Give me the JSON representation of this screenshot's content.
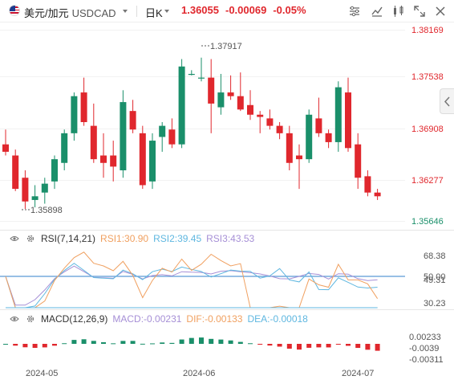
{
  "header": {
    "pair_name": "美元/加元",
    "symbol": "USDCAD",
    "period": "日K",
    "price": "1.36055",
    "change": "-0.00069",
    "change_pct": "-0.05%"
  },
  "toolbar": {
    "icons": [
      "settings-sliders-icon",
      "indicator-icon",
      "compare-icon",
      "fullscreen-icon",
      "close-icon"
    ]
  },
  "colors": {
    "up": "#1a8f6a",
    "down": "#e0272d",
    "rsi1": "#f0a060",
    "rsi2": "#5fb7e0",
    "rsi3": "#a68fd6",
    "macd_line": "#f0a060",
    "dif": "#f0a060",
    "dea": "#5fb7e0",
    "ref_line": "#5b9bd5"
  },
  "price_axis": {
    "labels": [
      "1.38169",
      "1.37538",
      "1.36908",
      "1.36277",
      "1.35646"
    ],
    "min": 1.3562,
    "max": 1.3835
  },
  "annotations": {
    "high": "1.37917",
    "low": "1.35898"
  },
  "time_axis": {
    "labels": [
      "2024-05",
      "2024-06",
      "2024-07"
    ]
  },
  "rsi": {
    "title": "RSI(7,14,21)",
    "rsi1": "RSI1:30.90",
    "rsi2": "RSI2:39.45",
    "rsi3": "RSI3:43.53",
    "axis": [
      "68.38",
      "50.00",
      "49.31",
      "30.23"
    ]
  },
  "macd": {
    "title": "MACD(12,26,9)",
    "macd": "MACD:-0.00231",
    "dif": "DIF:-0.00133",
    "dea": "DEA:-0.00018",
    "axis": [
      "0.00233",
      "-0.0039",
      "-0.00311"
    ]
  },
  "chart_data": {
    "type": "candlestick",
    "candles": [
      [
        1.3675,
        1.3695,
        1.366,
        1.3665
      ],
      [
        1.366,
        1.3668,
        1.3612,
        1.3615
      ],
      [
        1.363,
        1.364,
        1.3588,
        1.3598
      ],
      [
        1.36,
        1.362,
        1.359,
        1.3605
      ],
      [
        1.361,
        1.363,
        1.3595,
        1.3622
      ],
      [
        1.3625,
        1.366,
        1.3615,
        1.3655
      ],
      [
        1.365,
        1.3695,
        1.364,
        1.369
      ],
      [
        1.369,
        1.3745,
        1.368,
        1.374
      ],
      [
        1.3745,
        1.3765,
        1.37,
        1.3705
      ],
      [
        1.37,
        1.373,
        1.365,
        1.3655
      ],
      [
        1.366,
        1.369,
        1.363,
        1.365
      ],
      [
        1.366,
        1.368,
        1.3625,
        1.3645
      ],
      [
        1.364,
        1.3748,
        1.363,
        1.3732
      ],
      [
        1.372,
        1.3735,
        1.369,
        1.3695
      ],
      [
        1.369,
        1.37,
        1.3615,
        1.362
      ],
      [
        1.3625,
        1.369,
        1.3615,
        1.368
      ],
      [
        1.3685,
        1.3705,
        1.3665,
        1.37
      ],
      [
        1.3695,
        1.371,
        1.367,
        1.3675
      ],
      [
        1.3675,
        1.379,
        1.367,
        1.378
      ],
      [
        1.377,
        1.3775,
        1.3768,
        1.377
      ],
      [
        1.3765,
        1.3792,
        1.376,
        1.3765
      ],
      [
        1.3765,
        1.379,
        1.369,
        1.373
      ],
      [
        1.3725,
        1.377,
        1.3715,
        1.3745
      ],
      [
        1.3745,
        1.3768,
        1.3735,
        1.374
      ],
      [
        1.374,
        1.3772,
        1.372,
        1.3722
      ],
      [
        1.3728,
        1.3748,
        1.3708,
        1.3715
      ],
      [
        1.3715,
        1.372,
        1.369,
        1.3712
      ],
      [
        1.371,
        1.3722,
        1.3695,
        1.37
      ],
      [
        1.37,
        1.3705,
        1.3682,
        1.369
      ],
      [
        1.369,
        1.37,
        1.364,
        1.365
      ],
      [
        1.366,
        1.3675,
        1.3615,
        1.3655
      ],
      [
        1.3655,
        1.3722,
        1.365,
        1.3715
      ],
      [
        1.371,
        1.3738,
        1.3685,
        1.369
      ],
      [
        1.369,
        1.3695,
        1.367,
        1.3678
      ],
      [
        1.3678,
        1.376,
        1.3665,
        1.3752
      ],
      [
        1.3745,
        1.3765,
        1.3665,
        1.367
      ],
      [
        1.3675,
        1.369,
        1.3615,
        1.363
      ],
      [
        1.3632,
        1.364,
        1.3605,
        1.361
      ],
      [
        1.361,
        1.3615,
        1.36,
        1.3605
      ]
    ]
  }
}
